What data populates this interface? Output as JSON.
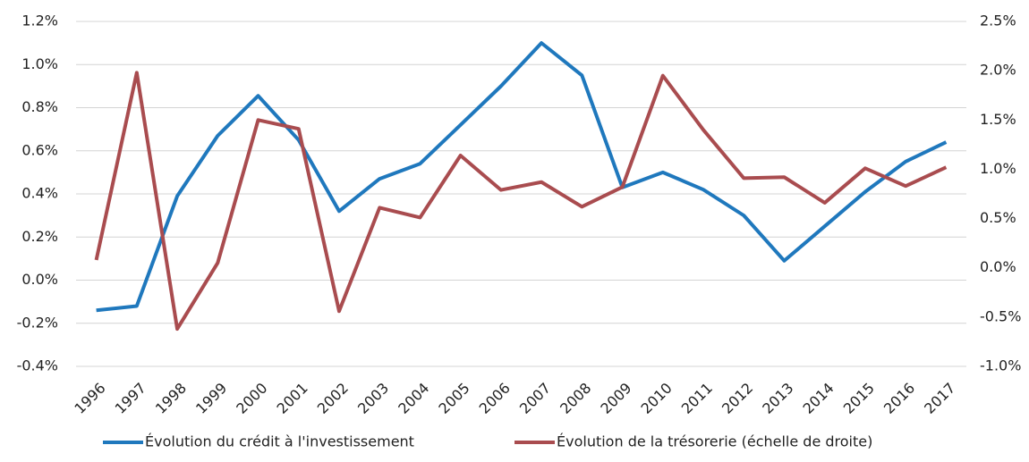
{
  "chart_data": {
    "type": "line",
    "categories": [
      "1996",
      "1997",
      "1998",
      "1999",
      "2000",
      "2001",
      "2002",
      "2003",
      "2004",
      "2005",
      "2006",
      "2007",
      "2008",
      "2009",
      "2010",
      "2011",
      "2012",
      "2013",
      "2014",
      "2015",
      "2016",
      "2017"
    ],
    "series": [
      {
        "name": "Évolution du crédit à l'investissement",
        "color": "#1f78bd",
        "axis": "y",
        "values": [
          -0.14,
          -0.12,
          0.39,
          0.67,
          0.855,
          0.65,
          0.32,
          0.47,
          0.54,
          0.72,
          0.9,
          1.1,
          0.95,
          0.43,
          0.5,
          0.42,
          0.3,
          0.09,
          0.25,
          0.41,
          0.55,
          0.64
        ]
      },
      {
        "name": "Évolution de la trésorerie (échelle de droite)",
        "color": "#a94c4f",
        "axis": "y2",
        "values": [
          0.08,
          1.98,
          -0.62,
          0.05,
          1.5,
          1.41,
          -0.44,
          0.61,
          0.51,
          1.14,
          0.79,
          0.87,
          0.62,
          0.82,
          1.95,
          1.4,
          0.91,
          0.92,
          0.66,
          1.01,
          0.83,
          1.02
        ]
      }
    ],
    "ylim": [
      -0.4,
      1.2
    ],
    "yticks": [
      {
        "value": -0.4,
        "label": "-0.4%"
      },
      {
        "value": -0.2,
        "label": "-0.2%"
      },
      {
        "value": 0,
        "label": "0.0%"
      },
      {
        "value": 0.2,
        "label": "0.2%"
      },
      {
        "value": 0.4,
        "label": "0.4%"
      },
      {
        "value": 0.6,
        "label": "0.6%"
      },
      {
        "value": 0.8,
        "label": "0.8%"
      },
      {
        "value": 1.0,
        "label": "1.0%"
      },
      {
        "value": 1.2,
        "label": "1.2%"
      }
    ],
    "y2lim": [
      -1.0,
      2.5
    ],
    "y2ticks": [
      {
        "value": -1.0,
        "label": "-1.0%"
      },
      {
        "value": -0.5,
        "label": "-0.5%"
      },
      {
        "value": 0,
        "label": "0.0%"
      },
      {
        "value": 0.5,
        "label": "0.5%"
      },
      {
        "value": 1.0,
        "label": "1.0%"
      },
      {
        "value": 1.5,
        "label": "1.5%"
      },
      {
        "value": 2.0,
        "label": "2.0%"
      },
      {
        "value": 2.5,
        "label": "2.5%"
      }
    ],
    "grid": true,
    "legend": "bottom"
  }
}
